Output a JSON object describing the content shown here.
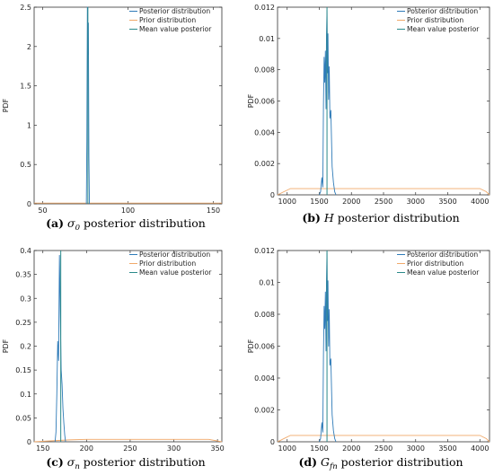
{
  "colors": {
    "posterior": "#2f7bb8",
    "prior": "#f0a96a",
    "mean": "#2a8a8a",
    "axis": "#333333"
  },
  "chart_data": [
    {
      "type": "line",
      "caption_prefix": "(a)",
      "caption_symbol": "σ",
      "caption_sub": "0",
      "caption_suffix": " posterior distribution",
      "ylabel": "PDF",
      "xlim": [
        45,
        155
      ],
      "ylim": [
        0,
        2.5
      ],
      "xticks": [
        50,
        100,
        150
      ],
      "yticks": [
        0,
        0.5,
        1,
        1.5,
        2,
        2.5
      ],
      "xtick_labels": [
        "50",
        "100",
        "150"
      ],
      "ytick_labels": [
        "0",
        "0.5",
        "1",
        "1.5",
        "2",
        "2.5"
      ],
      "legend": [
        "Posterior distribution",
        "Prior distribution",
        "Mean value posterior"
      ],
      "legend_position": "top-right",
      "posterior": {
        "x": [
          75.6,
          75.9,
          76.2,
          76.5,
          76.8,
          77.1,
          77.4
        ],
        "y": [
          0,
          0.8,
          2.5,
          1.9,
          2.3,
          0.6,
          0
        ]
      },
      "prior": {
        "x": [
          45,
          155
        ],
        "y": [
          0.009,
          0.009
        ]
      },
      "mean_value": 76.5
    },
    {
      "type": "line",
      "caption_prefix": "(b)",
      "caption_symbol": "H",
      "caption_sub": "",
      "caption_suffix": " posterior distribution",
      "ylabel": "PDF",
      "xlim": [
        850,
        4150
      ],
      "ylim": [
        0,
        0.012
      ],
      "xticks": [
        1000,
        1500,
        2000,
        2500,
        3000,
        3500,
        4000
      ],
      "yticks": [
        0,
        0.002,
        0.004,
        0.006,
        0.008,
        0.01,
        0.012
      ],
      "xtick_labels": [
        "1000",
        "1500",
        "2000",
        "2500",
        "3000",
        "3500",
        "4000"
      ],
      "ytick_labels": [
        "0",
        "0.002",
        "0.004",
        "0.006",
        "0.008",
        "0.01",
        "0.012"
      ],
      "legend": [
        "Posterior distribution",
        "Prior distribution",
        "Mean value posterior"
      ],
      "legend_position": "top-right",
      "posterior": {
        "x": [
          1500,
          1520,
          1540,
          1555,
          1565,
          1575,
          1585,
          1595,
          1605,
          1612,
          1620,
          1628,
          1635,
          1645,
          1655,
          1665,
          1680,
          1700,
          1720,
          1740,
          1760
        ],
        "y": [
          0,
          0.0002,
          0.0011,
          0.0005,
          0.0058,
          0.0088,
          0.0072,
          0.0092,
          0.0055,
          0.0102,
          0.0118,
          0.0078,
          0.0103,
          0.0061,
          0.0082,
          0.0049,
          0.0054,
          0.0018,
          0.0008,
          0.0002,
          0
        ]
      },
      "prior": {
        "x": [
          850,
          950,
          1050,
          1500,
          2000,
          2500,
          3000,
          3500,
          4000,
          4100,
          4150
        ],
        "y": [
          0,
          0.0002,
          0.0004,
          0.0004,
          0.0004,
          0.0004,
          0.0004,
          0.0004,
          0.0004,
          0.0002,
          0
        ]
      },
      "mean_value": 1620
    },
    {
      "type": "line",
      "caption_prefix": "(c)",
      "caption_symbol": "σ",
      "caption_sub": "n",
      "caption_suffix": " posterior distribution",
      "ylabel": "PDF",
      "xlim": [
        140,
        355
      ],
      "ylim": [
        0,
        0.4
      ],
      "xticks": [
        150,
        200,
        250,
        300,
        350
      ],
      "yticks": [
        0,
        0.05,
        0.1,
        0.15,
        0.2,
        0.25,
        0.3,
        0.35,
        0.4
      ],
      "xtick_labels": [
        "150",
        "200",
        "250",
        "300",
        "350"
      ],
      "ytick_labels": [
        "0",
        "0.05",
        "0.1",
        "0.15",
        "0.2",
        "0.25",
        "0.3",
        "0.35",
        "0.4"
      ],
      "legend": [
        "Posterior distribution",
        "Prior distribution",
        "Mean value posterior"
      ],
      "legend_position": "top-right",
      "posterior": {
        "x": [
          164,
          165,
          166,
          167,
          168,
          169,
          170,
          171,
          172,
          173,
          174,
          175,
          176
        ],
        "y": [
          0,
          0.02,
          0.1,
          0.21,
          0.17,
          0.39,
          0.26,
          0.15,
          0.12,
          0.07,
          0.04,
          0.015,
          0
        ]
      },
      "prior": {
        "x": [
          140,
          180,
          200,
          250,
          300,
          340,
          355
        ],
        "y": [
          0,
          0.004,
          0.005,
          0.005,
          0.005,
          0.005,
          0
        ]
      },
      "mean_value": 170.5
    },
    {
      "type": "line",
      "caption_prefix": "(d)",
      "caption_symbol": "G",
      "caption_sub": "fn",
      "caption_suffix": " posterior distribution",
      "ylabel": "PDF",
      "xlim": [
        850,
        4150
      ],
      "ylim": [
        0,
        0.012
      ],
      "xticks": [
        1000,
        1500,
        2000,
        2500,
        3000,
        3500,
        4000
      ],
      "yticks": [
        0,
        0.002,
        0.004,
        0.006,
        0.008,
        0.01,
        0.012
      ],
      "xtick_labels": [
        "1000",
        "1500",
        "2000",
        "2500",
        "3000",
        "3500",
        "4000"
      ],
      "ytick_labels": [
        "0",
        "0.002",
        "0.004",
        "0.006",
        "0.008",
        "0.01",
        "0.012"
      ],
      "legend": [
        "Posterior distribution",
        "Prior distribution",
        "Mean value posterior"
      ],
      "legend_position": "top-right",
      "posterior": {
        "x": [
          1500,
          1520,
          1540,
          1555,
          1565,
          1575,
          1585,
          1595,
          1605,
          1612,
          1620,
          1628,
          1635,
          1645,
          1655,
          1665,
          1680,
          1700,
          1720,
          1740,
          1760
        ],
        "y": [
          0,
          0.0002,
          0.0012,
          0.0006,
          0.0055,
          0.0085,
          0.0071,
          0.0094,
          0.0057,
          0.0101,
          0.0119,
          0.0076,
          0.0101,
          0.006,
          0.0083,
          0.0048,
          0.0052,
          0.0017,
          0.0007,
          0.0002,
          0
        ]
      },
      "prior": {
        "x": [
          850,
          950,
          1050,
          1500,
          2000,
          2500,
          3000,
          3500,
          4000,
          4100,
          4150
        ],
        "y": [
          0,
          0.0002,
          0.0004,
          0.0004,
          0.0004,
          0.0004,
          0.0004,
          0.0004,
          0.0004,
          0.0002,
          0
        ]
      },
      "mean_value": 1620
    }
  ]
}
